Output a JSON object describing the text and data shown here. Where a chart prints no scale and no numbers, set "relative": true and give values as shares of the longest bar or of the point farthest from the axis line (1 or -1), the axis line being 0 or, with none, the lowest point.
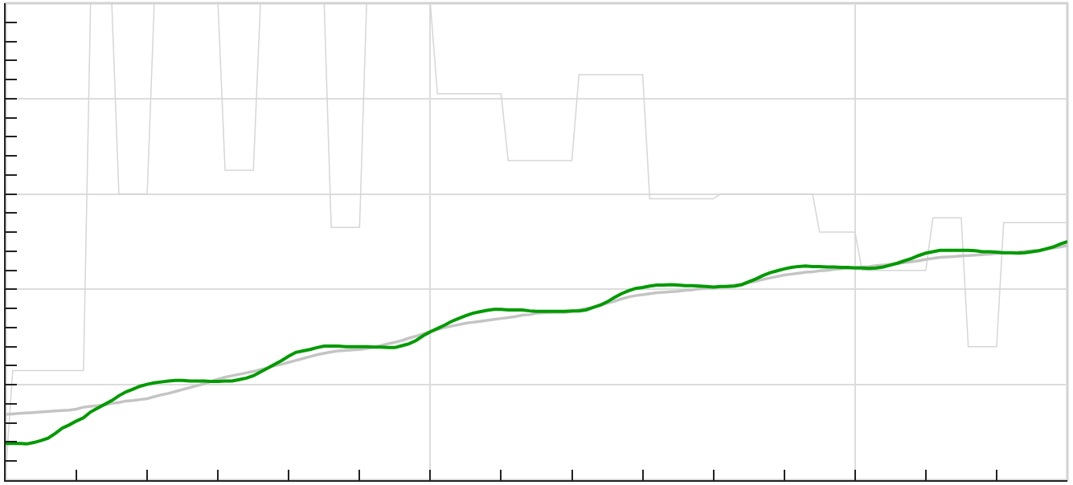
{
  "chart_data": {
    "type": "line",
    "relative": true,
    "grid": true,
    "categories": [
      null,
      null,
      null,
      null,
      null,
      null,
      null,
      null,
      null,
      null,
      null,
      null,
      null,
      null,
      null,
      null,
      null,
      null,
      null,
      null,
      null,
      null,
      null,
      null,
      null,
      null,
      null,
      null,
      null,
      null,
      null,
      null,
      null,
      null,
      null,
      null,
      null,
      null,
      null,
      null,
      null,
      null,
      null,
      null,
      null,
      null,
      null,
      null,
      null,
      null,
      null,
      null,
      null,
      null,
      null,
      null,
      null,
      null,
      null,
      null,
      null,
      null,
      null,
      null,
      null,
      null,
      null,
      null,
      null,
      null,
      null,
      null,
      null,
      null,
      null,
      null,
      null,
      null,
      null,
      null,
      null,
      null,
      null,
      null,
      null,
      null,
      null,
      null,
      null,
      null,
      null,
      null,
      null,
      null,
      null,
      null,
      null,
      null,
      null,
      null,
      null,
      null,
      null,
      null,
      null,
      null,
      null,
      null,
      null,
      null,
      null,
      null,
      null,
      null,
      null,
      null,
      null,
      null,
      null,
      null,
      null,
      null,
      null,
      null,
      null,
      null,
      null,
      null,
      null,
      null,
      null,
      null,
      null,
      null,
      null,
      null,
      null,
      null,
      null,
      null,
      null,
      null,
      null,
      null,
      null,
      null,
      null,
      null,
      null,
      null,
      null
    ],
    "series": [
      {
        "color": "#d6d6d6",
        "values": [
          0.01,
          0.23,
          0.23,
          0.23,
          0.23,
          0.23,
          0.23,
          0.23,
          0.23,
          0.23,
          0.23,
          0.23,
          1,
          1,
          1,
          1,
          0.6,
          0.6,
          0.6,
          0.6,
          0.6,
          1,
          1,
          1,
          1,
          1,
          1,
          1,
          1,
          1,
          1,
          0.65,
          0.65,
          0.65,
          0.65,
          0.65,
          1,
          1,
          1,
          1,
          1,
          1,
          1,
          1,
          1,
          1,
          0.53,
          0.53,
          0.53,
          0.53,
          0.53,
          1,
          1,
          1,
          1,
          1,
          1,
          1,
          1,
          1,
          1,
          0.81,
          0.81,
          0.81,
          0.81,
          0.81,
          0.81,
          0.81,
          0.81,
          0.81,
          0.81,
          0.67,
          0.67,
          0.67,
          0.67,
          0.67,
          0.67,
          0.67,
          0.67,
          0.67,
          0.67,
          0.85,
          0.85,
          0.85,
          0.85,
          0.85,
          0.85,
          0.85,
          0.85,
          0.85,
          0.85,
          0.59,
          0.59,
          0.59,
          0.59,
          0.59,
          0.59,
          0.59,
          0.59,
          0.59,
          0.59,
          0.6,
          0.6,
          0.6,
          0.6,
          0.6,
          0.6,
          0.6,
          0.6,
          0.6,
          0.6,
          0.6,
          0.6,
          0.6,
          0.6,
          0.52,
          0.52,
          0.52,
          0.52,
          0.52,
          0.52,
          0.44,
          0.44,
          0.44,
          0.44,
          0.44,
          0.44,
          0.44,
          0.44,
          0.44,
          0.44,
          0.55,
          0.55,
          0.55,
          0.55,
          0.55,
          0.28,
          0.28,
          0.28,
          0.28,
          0.28,
          0.54,
          0.54,
          0.54,
          0.54,
          0.54,
          0.54,
          0.54,
          0.54,
          0.54,
          0.54
        ]
      },
      {
        "color": "#c4c4c4",
        "values": [
          0.138,
          0.139,
          0.14,
          0.141,
          0.142,
          0.143,
          0.144,
          0.145,
          0.146,
          0.147,
          0.149,
          0.153,
          0.155,
          0.156,
          0.158,
          0.161,
          0.163,
          0.166,
          0.167,
          0.169,
          0.171,
          0.175,
          0.179,
          0.182,
          0.186,
          0.19,
          0.194,
          0.198,
          0.202,
          0.207,
          0.212,
          0.216,
          0.219,
          0.222,
          0.225,
          0.228,
          0.232,
          0.235,
          0.24,
          0.243,
          0.247,
          0.251,
          0.255,
          0.259,
          0.263,
          0.266,
          0.269,
          0.271,
          0.272,
          0.273,
          0.274,
          0.276,
          0.279,
          0.282,
          0.286,
          0.289,
          0.293,
          0.298,
          0.302,
          0.307,
          0.312,
          0.316,
          0.32,
          0.323,
          0.326,
          0.329,
          0.331,
          0.333,
          0.335,
          0.337,
          0.339,
          0.341,
          0.343,
          0.346,
          0.347,
          0.35,
          0.351,
          0.352,
          0.352,
          0.352,
          0.354,
          0.357,
          0.36,
          0.362,
          0.366,
          0.371,
          0.375,
          0.38,
          0.384,
          0.387,
          0.389,
          0.391,
          0.393,
          0.394,
          0.395,
          0.396,
          0.398,
          0.399,
          0.401,
          0.402,
          0.403,
          0.405,
          0.407,
          0.409,
          0.411,
          0.414,
          0.417,
          0.421,
          0.424,
          0.427,
          0.43,
          0.432,
          0.434,
          0.436,
          0.437,
          0.439,
          0.44,
          0.442,
          0.443,
          0.444,
          0.446,
          0.447,
          0.448,
          0.45,
          0.451,
          0.453,
          0.454,
          0.456,
          0.458,
          0.46,
          0.463,
          0.465,
          0.467,
          0.468,
          0.469,
          0.47,
          0.471,
          0.472,
          0.473,
          0.474,
          0.475,
          0.476,
          0.477,
          0.478,
          0.48,
          0.481,
          0.482,
          0.484,
          0.487,
          0.489,
          0.492
        ]
      },
      {
        "color": "#009a00",
        "values": [
          0.077,
          0.077,
          0.077,
          0.076,
          0.079,
          0.083,
          0.088,
          0.098,
          0.109,
          0.116,
          0.124,
          0.131,
          0.143,
          0.151,
          0.159,
          0.167,
          0.177,
          0.185,
          0.191,
          0.197,
          0.201,
          0.204,
          0.206,
          0.208,
          0.209,
          0.209,
          0.208,
          0.208,
          0.208,
          0.207,
          0.207,
          0.208,
          0.208,
          0.211,
          0.214,
          0.219,
          0.227,
          0.235,
          0.243,
          0.251,
          0.26,
          0.268,
          0.271,
          0.274,
          0.278,
          0.281,
          0.281,
          0.281,
          0.28,
          0.28,
          0.28,
          0.28,
          0.279,
          0.279,
          0.278,
          0.278,
          0.282,
          0.286,
          0.293,
          0.303,
          0.311,
          0.318,
          0.325,
          0.333,
          0.339,
          0.345,
          0.35,
          0.353,
          0.356,
          0.358,
          0.358,
          0.357,
          0.357,
          0.357,
          0.355,
          0.354,
          0.354,
          0.354,
          0.354,
          0.354,
          0.355,
          0.355,
          0.357,
          0.362,
          0.367,
          0.374,
          0.383,
          0.391,
          0.397,
          0.402,
          0.404,
          0.407,
          0.409,
          0.409,
          0.41,
          0.409,
          0.408,
          0.408,
          0.407,
          0.406,
          0.405,
          0.406,
          0.406,
          0.407,
          0.41,
          0.416,
          0.422,
          0.429,
          0.435,
          0.439,
          0.443,
          0.446,
          0.448,
          0.449,
          0.448,
          0.448,
          0.447,
          0.447,
          0.446,
          0.446,
          0.445,
          0.445,
          0.444,
          0.445,
          0.447,
          0.451,
          0.455,
          0.46,
          0.465,
          0.471,
          0.476,
          0.479,
          0.482,
          0.482,
          0.482,
          0.482,
          0.482,
          0.481,
          0.479,
          0.479,
          0.478,
          0.477,
          0.477,
          0.476,
          0.477,
          0.479,
          0.481,
          0.485,
          0.489,
          0.495,
          0.5
        ]
      }
    ]
  }
}
